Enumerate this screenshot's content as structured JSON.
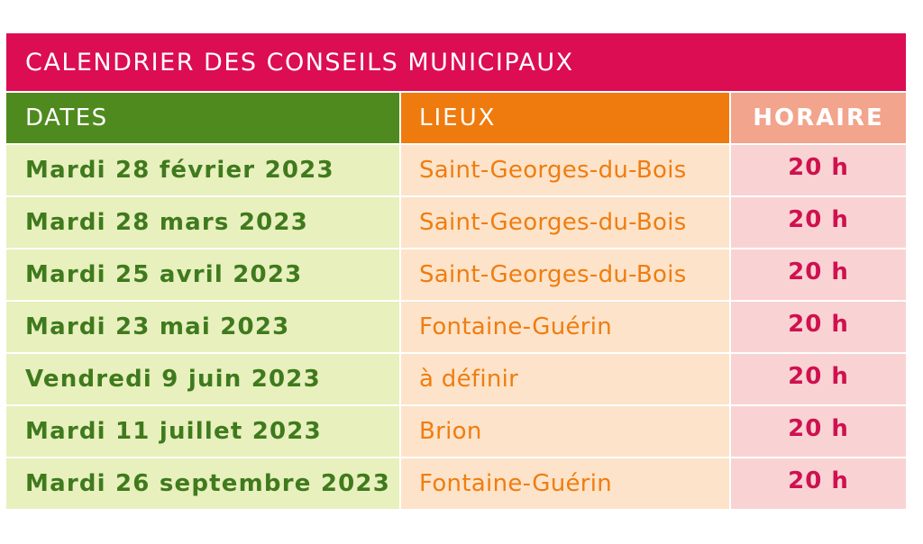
{
  "title": "CALENDRIER DES CONSEILS MUNICIPAUX",
  "headers": {
    "dates": "DATES",
    "lieux": "LIEUX",
    "horaire": "HORAIRE"
  },
  "rows": [
    {
      "date": "Mardi 28 février 2023",
      "lieu": "Saint-Georges-du-Bois",
      "horaire": "20 h"
    },
    {
      "date": "Mardi 28 mars 2023",
      "lieu": "Saint-Georges-du-Bois",
      "horaire": "20 h"
    },
    {
      "date": "Mardi 25 avril 2023",
      "lieu": "Saint-Georges-du-Bois",
      "horaire": "20 h"
    },
    {
      "date": "Mardi 23 mai 2023",
      "lieu": "Fontaine-Guérin",
      "horaire": "20 h"
    },
    {
      "date": "Vendredi 9 juin 2023",
      "lieu": "à définir",
      "horaire": "20 h"
    },
    {
      "date": "Mardi 11 juillet 2023",
      "lieu": "Brion",
      "horaire": "20 h"
    },
    {
      "date": "Mardi 26 septembre 2023",
      "lieu": "Fontaine-Guérin",
      "horaire": "20 h"
    }
  ],
  "colors": {
    "title_bg": "#dc0d53",
    "dates_header_bg": "#4f8a1e",
    "lieux_header_bg": "#ef7b0e",
    "horaire_header_bg": "#f2a48c",
    "dates_cell_bg": "#e8f0bd",
    "lieux_cell_bg": "#fde3c9",
    "horaire_cell_bg": "#f9d3d3"
  }
}
